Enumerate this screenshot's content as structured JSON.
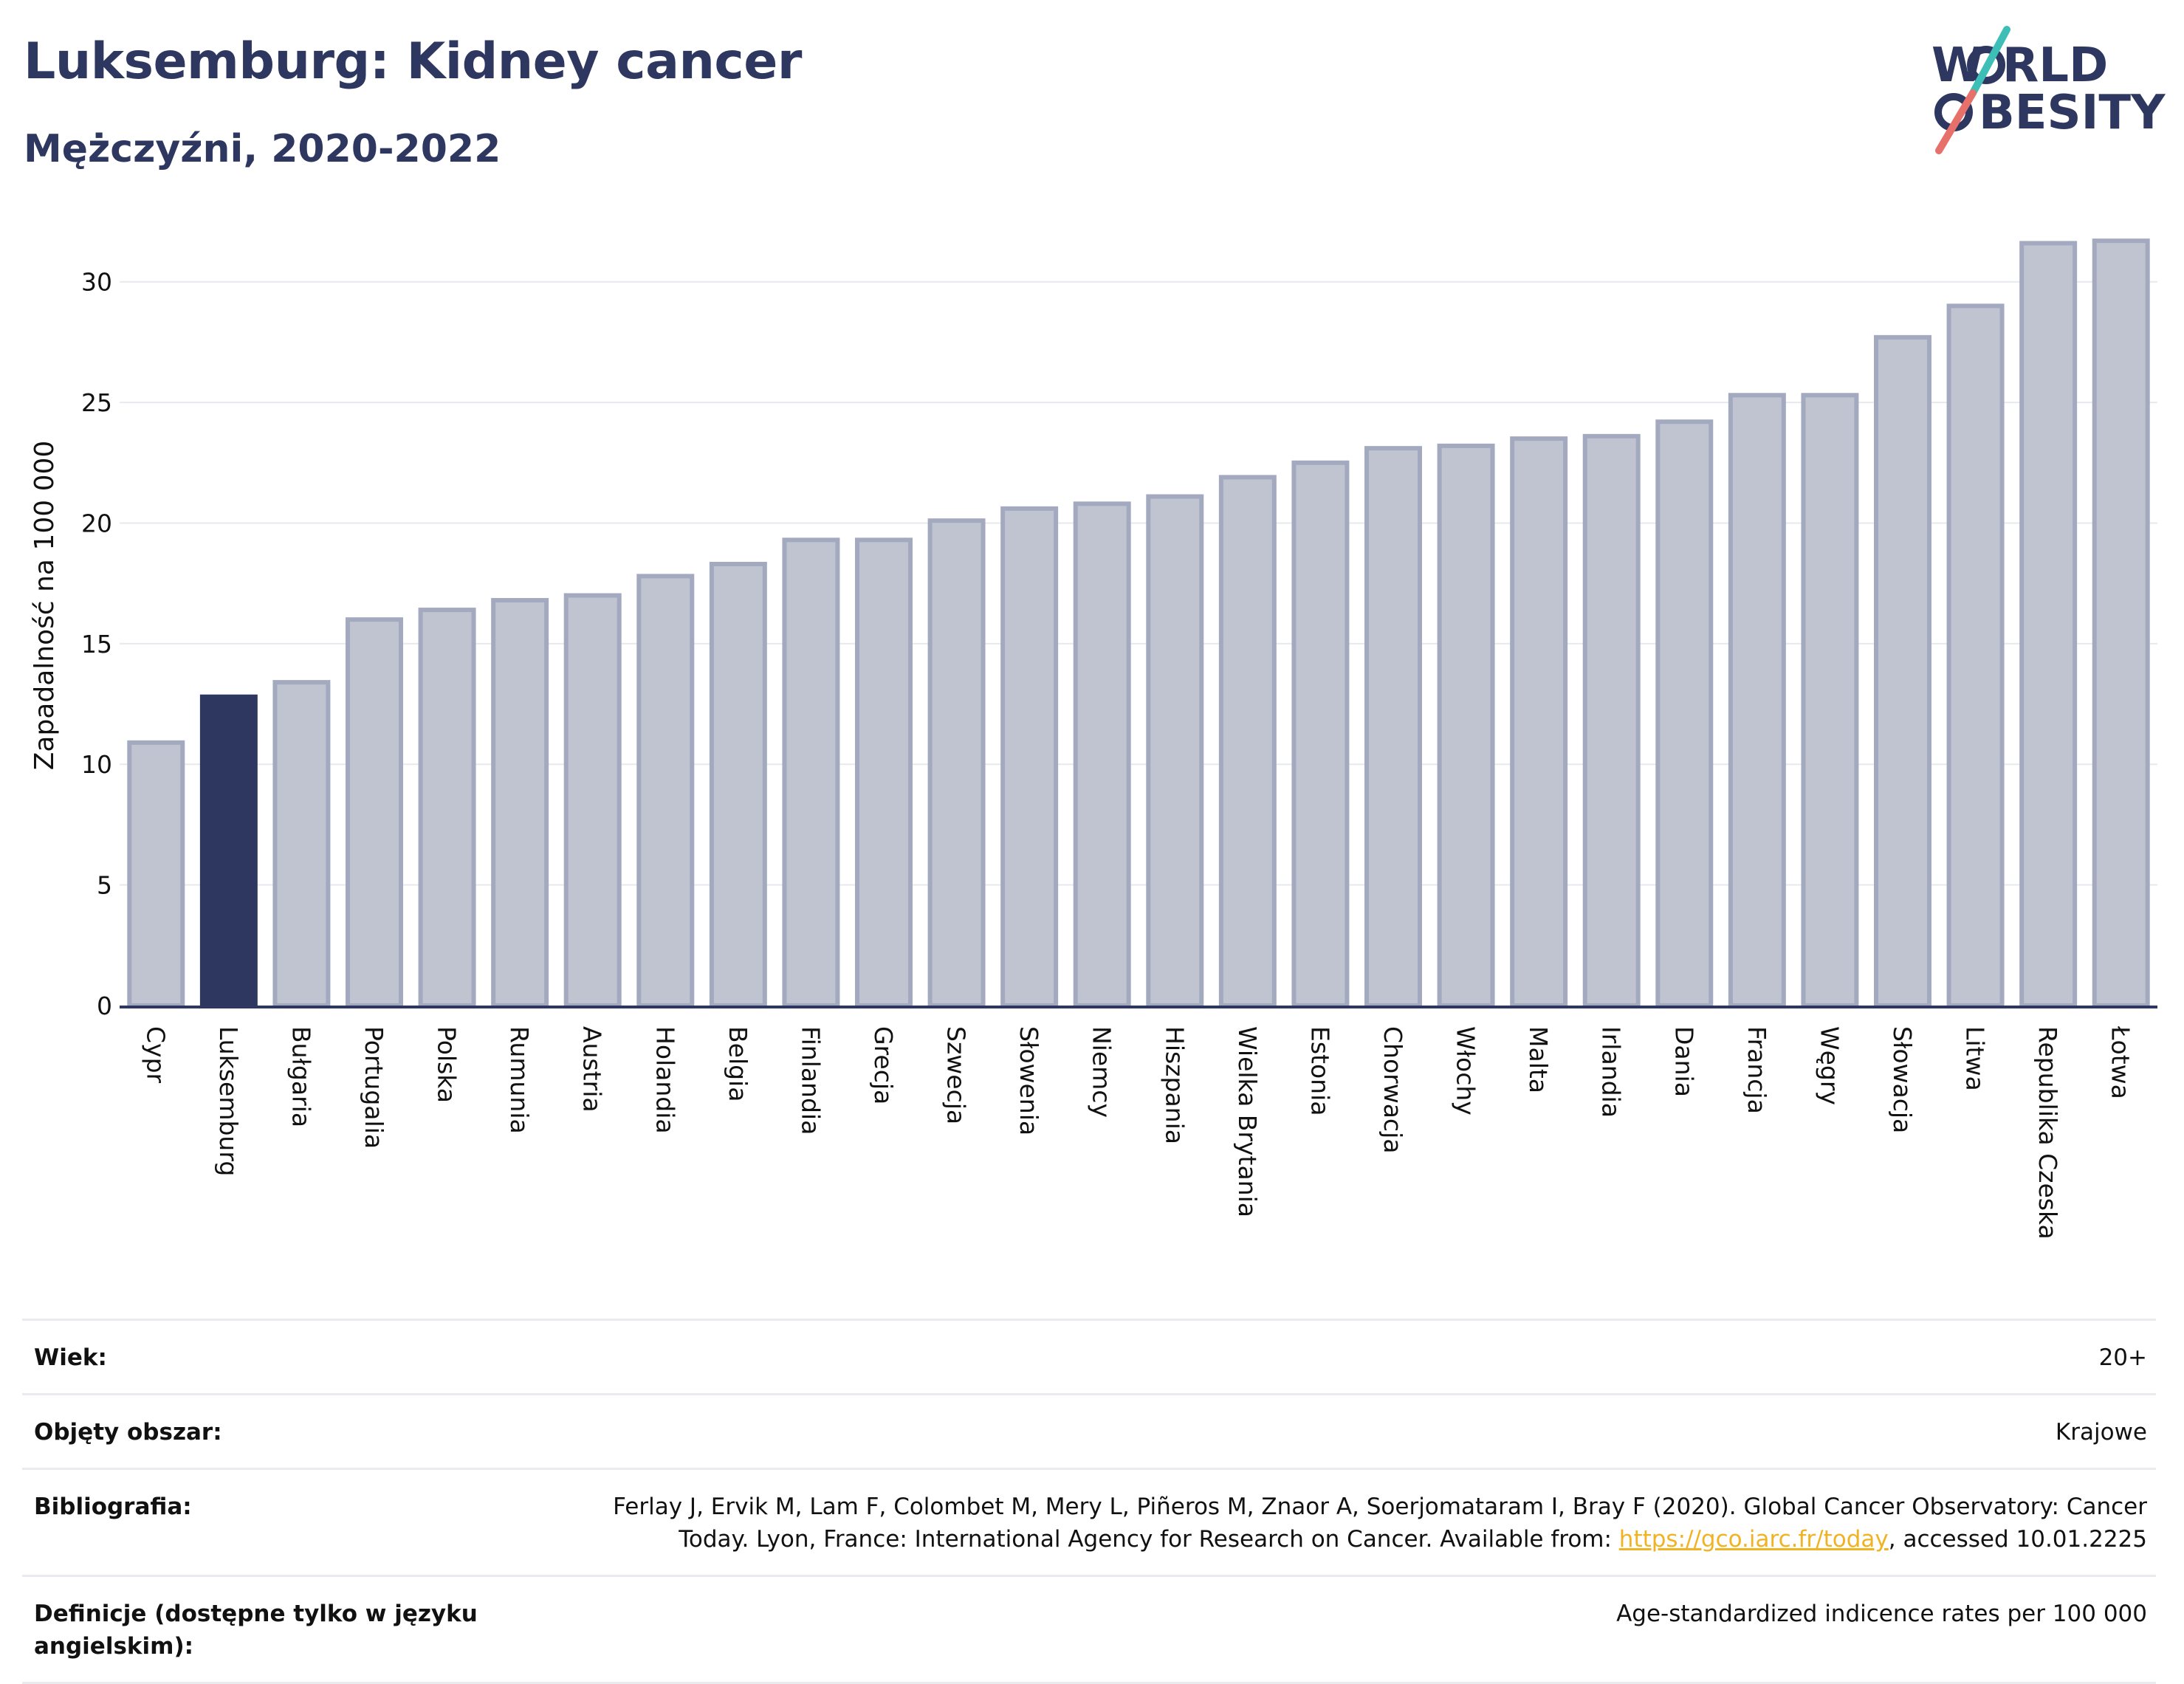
{
  "header": {
    "title": "Luksemburg: Kidney cancer",
    "subtitle": "Mężczyźni, 2020-2022"
  },
  "logo": {
    "line1": "W",
    "line1b": "RLD",
    "line2": "BESITY",
    "colors": {
      "text": "#2d3760",
      "slash_top": "#3dbfb8",
      "slash_bottom": "#e8706a"
    }
  },
  "chart_data": {
    "type": "bar",
    "ylabel": "Zapadalność na 100 000",
    "ylim": [
      0,
      32.5
    ],
    "yticks": [
      0,
      5,
      10,
      15,
      20,
      25,
      30
    ],
    "grid": true,
    "highlight": "Luksemburg",
    "colors": {
      "bar": "#c0c4d1",
      "bar_edge": "#a3a9bf",
      "highlight": "#2d3760"
    },
    "categories": [
      "Cypr",
      "Luksemburg",
      "Bułgaria",
      "Portugalia",
      "Polska",
      "Rumunia",
      "Austria",
      "Holandia",
      "Belgia",
      "Finlandia",
      "Grecja",
      "Szwecja",
      "Słowenia",
      "Niemcy",
      "Hiszpania",
      "Wielka Brytania",
      "Estonia",
      "Chorwacja",
      "Włochy",
      "Malta",
      "Irlandia",
      "Dania",
      "Francja",
      "Węgry",
      "Słowacja",
      "Litwa",
      "Republika Czeska",
      "Łotwa"
    ],
    "values": [
      10.9,
      12.8,
      13.4,
      16.0,
      16.4,
      16.8,
      17.0,
      17.8,
      18.3,
      19.3,
      19.3,
      20.1,
      20.6,
      20.8,
      21.1,
      21.9,
      22.5,
      23.1,
      23.2,
      23.5,
      23.6,
      24.2,
      25.3,
      25.3,
      27.7,
      29.0,
      31.6,
      31.7
    ]
  },
  "meta": [
    {
      "label": "Wiek:",
      "value": "20+"
    },
    {
      "label": "Objęty obszar:",
      "value": "Krajowe"
    },
    {
      "label": "Bibliografia:",
      "value_line1": "Ferlay J, Ervik M, Lam F, Colombet M, Mery L, Piñeros M, Znaor A, Soerjomataram I, Bray F (2020). Global Cancer Observatory: Cancer",
      "value_line2_pre": "Today. Lyon, France: International Agency for Research on Cancer. Available from: ",
      "link": "https://gco.iarc.fr/today",
      "value_line2_post": ", accessed 10.01.2225"
    },
    {
      "label": "Definicje (dostępne tylko w języku angielskim):",
      "value": "Age-standardized indicence rates per 100 000"
    }
  ]
}
